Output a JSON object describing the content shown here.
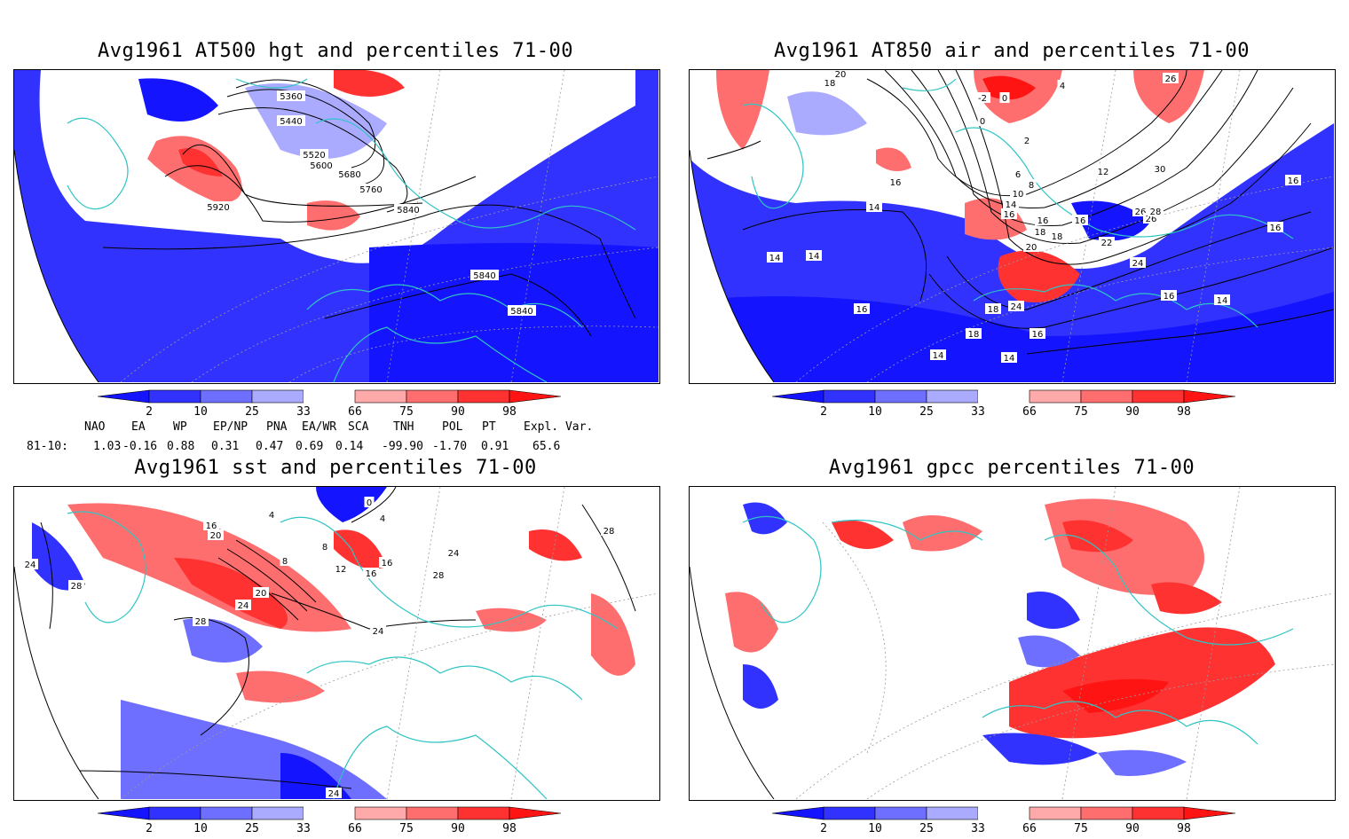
{
  "panels": [
    {
      "id": "hgt500",
      "title": "Avg1961 AT500 hgt and percentiles 71-00",
      "contour_labels": [
        "5360",
        "5440",
        "5520",
        "5600",
        "5680",
        "5760",
        "5840",
        "5920",
        "5840",
        "5840"
      ]
    },
    {
      "id": "air850",
      "title": "Avg1961 AT850 air and percentiles 71-00",
      "contour_labels": [
        "20",
        "18",
        "-2",
        "0",
        "4",
        "26",
        "0",
        "2",
        "6",
        "8",
        "10",
        "12",
        "14",
        "16",
        "16",
        "16",
        "18",
        "18",
        "20",
        "22",
        "24",
        "24",
        "26",
        "26",
        "28",
        "30",
        "14",
        "16",
        "14",
        "14",
        "16",
        "18",
        "18",
        "14",
        "14",
        "16",
        "16",
        "14",
        "16",
        "16"
      ]
    },
    {
      "id": "sst",
      "title": "Avg1961 sst and percentiles 71-00",
      "contour_labels": [
        "24",
        "28",
        "16",
        "20",
        "8",
        "4",
        "0",
        "4",
        "8",
        "12",
        "16",
        "16",
        "20",
        "24",
        "24",
        "24",
        "28",
        "28",
        "28",
        "24"
      ]
    },
    {
      "id": "gpcc",
      "title": "Avg1961 gpcc percentiles 71-00",
      "contour_labels": []
    }
  ],
  "colorbar": {
    "ticks": [
      "2",
      "10",
      "25",
      "33",
      "66",
      "75",
      "90",
      "98"
    ],
    "colors": {
      "lt2": "#1414ff",
      "2to10": "#3232ff",
      "10to25": "#6e6eff",
      "25to33": "#aaaaff",
      "33to66": "#ffffff",
      "66to75": "#ffaaaa",
      "75to90": "#ff6e6e",
      "90to98": "#ff3232",
      "gt98": "#ff1414"
    }
  },
  "indices": {
    "headers": [
      "NAO",
      "EA",
      "WP",
      "EP/NP",
      "PNA",
      "EA/WR",
      "SCA",
      "TNH",
      "POL",
      "PT",
      "Expl. Var."
    ],
    "row_label": "81-10:",
    "values": [
      "1.03",
      "-0.16",
      "0.88",
      "0.31",
      "0.47",
      "0.69",
      "0.14",
      "-99.90",
      "-1.70",
      "0.91",
      "65.6"
    ]
  },
  "map_colors": {
    "coastline": "#2ec4c4",
    "contour": "#000000",
    "grid": "#9a9a9a"
  }
}
